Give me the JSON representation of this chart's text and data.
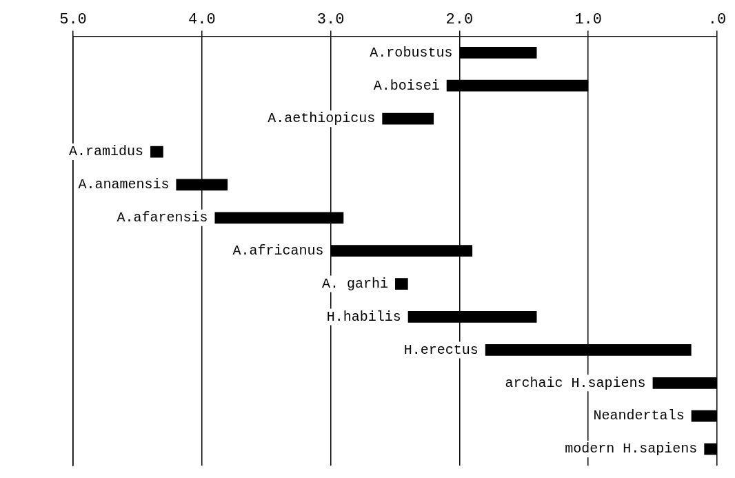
{
  "chart_data": {
    "type": "bar",
    "orientation": "horizontal",
    "categories": [
      "A.robustus",
      "A.boisei",
      "A.aethiopicus",
      "A.ramidus",
      "A.anamensis",
      "A.afarensis",
      "A.africanus",
      "A. garhi",
      "H.habilis",
      "H.erectus",
      "archaic H.sapiens",
      "Neandertals",
      "modern H.sapiens"
    ],
    "base": [
      1.4,
      1.0,
      2.2,
      4.3,
      3.8,
      2.9,
      1.9,
      2.4,
      1.4,
      0.2,
      0,
      0,
      0
    ],
    "values": [
      0.6,
      1.1,
      0.4,
      0.1,
      0.4,
      1.0,
      1.1,
      0.1,
      1.0,
      1.6,
      0.5,
      0.2,
      0.1
    ],
    "color": "#000000",
    "xlim": [
      5,
      0
    ],
    "xticks": [
      {
        "value": 5,
        "label": "5.0"
      },
      {
        "value": 4,
        "label": "4.0"
      },
      {
        "value": 3,
        "label": "3.0"
      },
      {
        "value": 2,
        "label": "2.0"
      },
      {
        "value": 1,
        "label": "1.0"
      },
      {
        "value": 0,
        "label": ".0"
      }
    ],
    "grid": "x"
  }
}
